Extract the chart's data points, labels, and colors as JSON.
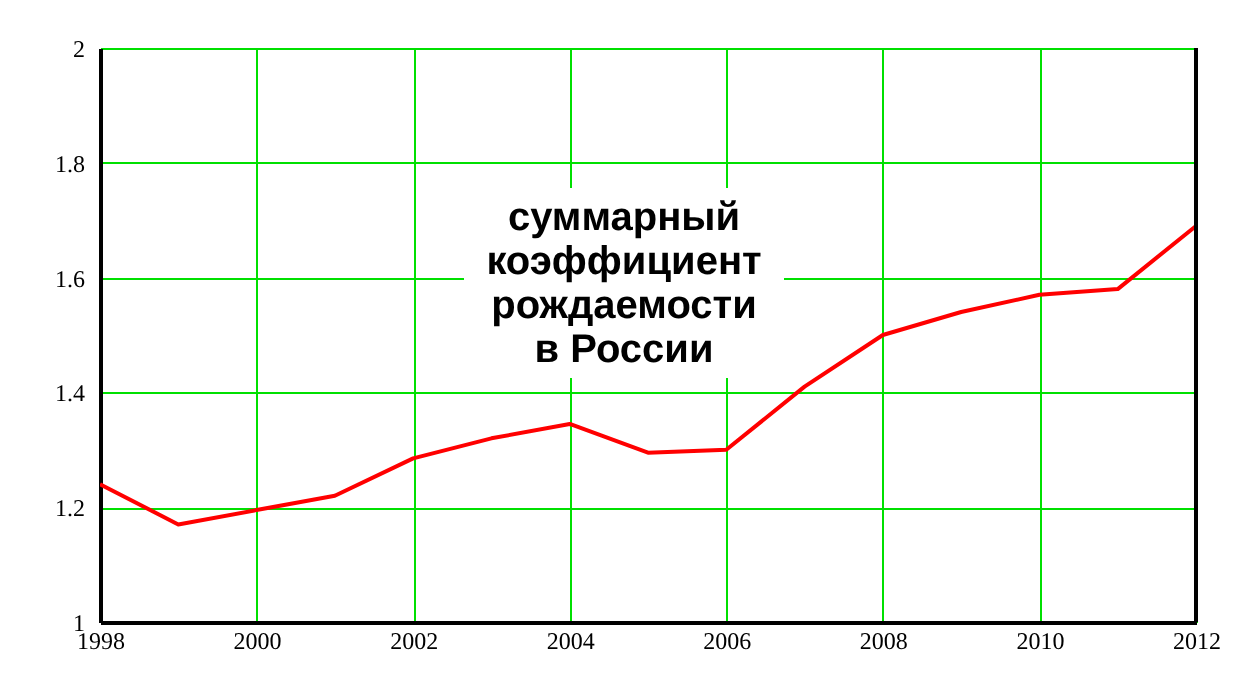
{
  "chart_data": {
    "type": "line",
    "x": [
      1998,
      1999,
      2000,
      2001,
      2002,
      2003,
      2004,
      2005,
      2006,
      2007,
      2008,
      2009,
      2010,
      2011,
      2012
    ],
    "series": [
      {
        "color": "#ff0000",
        "values": [
          1.24,
          1.17,
          1.195,
          1.22,
          1.285,
          1.32,
          1.345,
          1.295,
          1.3,
          1.41,
          1.5,
          1.54,
          1.57,
          1.58,
          1.69
        ]
      }
    ],
    "xlim": [
      1998,
      2012
    ],
    "xticks": [
      1998,
      2000,
      2002,
      2004,
      2006,
      2008,
      2010,
      2012
    ],
    "ylim": [
      1,
      2
    ],
    "yticks": [
      1,
      1.2,
      1.4,
      1.6,
      1.8,
      2
    ],
    "grid": true,
    "marker": "none",
    "line_style": "solid",
    "annotations": [
      "суммарный\nкоэффициент\nрождаемости\nв России"
    ]
  }
}
